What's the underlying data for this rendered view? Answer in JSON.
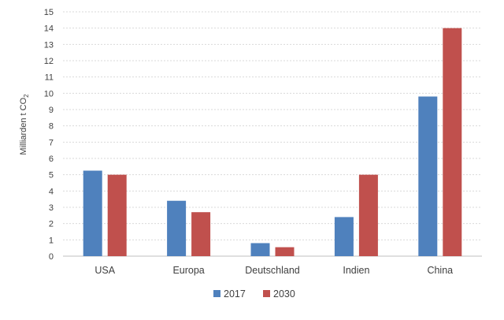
{
  "chart_data": {
    "type": "bar",
    "categories": [
      "USA",
      "Europa",
      "Deutschland",
      "Indien",
      "China"
    ],
    "series": [
      {
        "name": "2017",
        "color": "#4f81bd",
        "values": [
          5.25,
          3.4,
          0.8,
          2.4,
          9.8
        ]
      },
      {
        "name": "2030",
        "color": "#c0504d",
        "values": [
          5.0,
          2.7,
          0.55,
          5.0,
          14.0
        ]
      }
    ],
    "ylabel_main": "Milliarden t CO",
    "ylabel_sub": "2",
    "ylim": [
      0,
      15
    ],
    "yticks": [
      "0",
      "1",
      "2",
      "3",
      "4",
      "5",
      "6",
      "7",
      "8",
      "9",
      "10",
      "11",
      "12",
      "13",
      "14",
      "15"
    ],
    "grid": true,
    "legend_position": "bottom"
  }
}
